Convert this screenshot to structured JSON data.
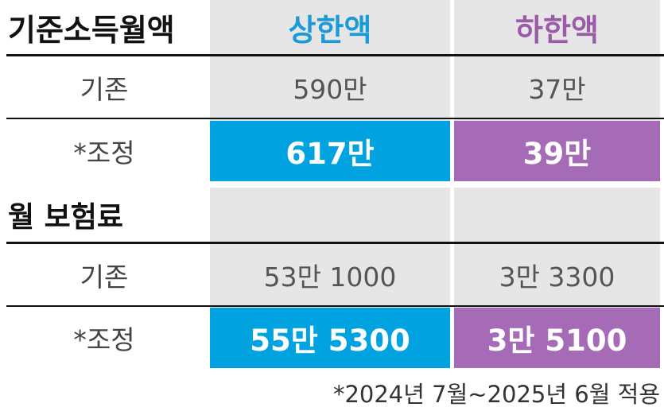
{
  "header": {
    "label": "기준소득월액",
    "upper": "상한액",
    "lower": "하한액"
  },
  "income": {
    "rows": [
      [
        "기존",
        "590만",
        "37만"
      ],
      [
        "*조정",
        "617만",
        "39만"
      ]
    ]
  },
  "premium": {
    "title": "월 보험료",
    "rows": [
      [
        "기존",
        "53만 1000",
        "3만 3300"
      ],
      [
        "*조정",
        "55만 5300",
        "3만 5100"
      ]
    ]
  },
  "footnote": "*2024년 7월~2025년 6월 적용"
}
